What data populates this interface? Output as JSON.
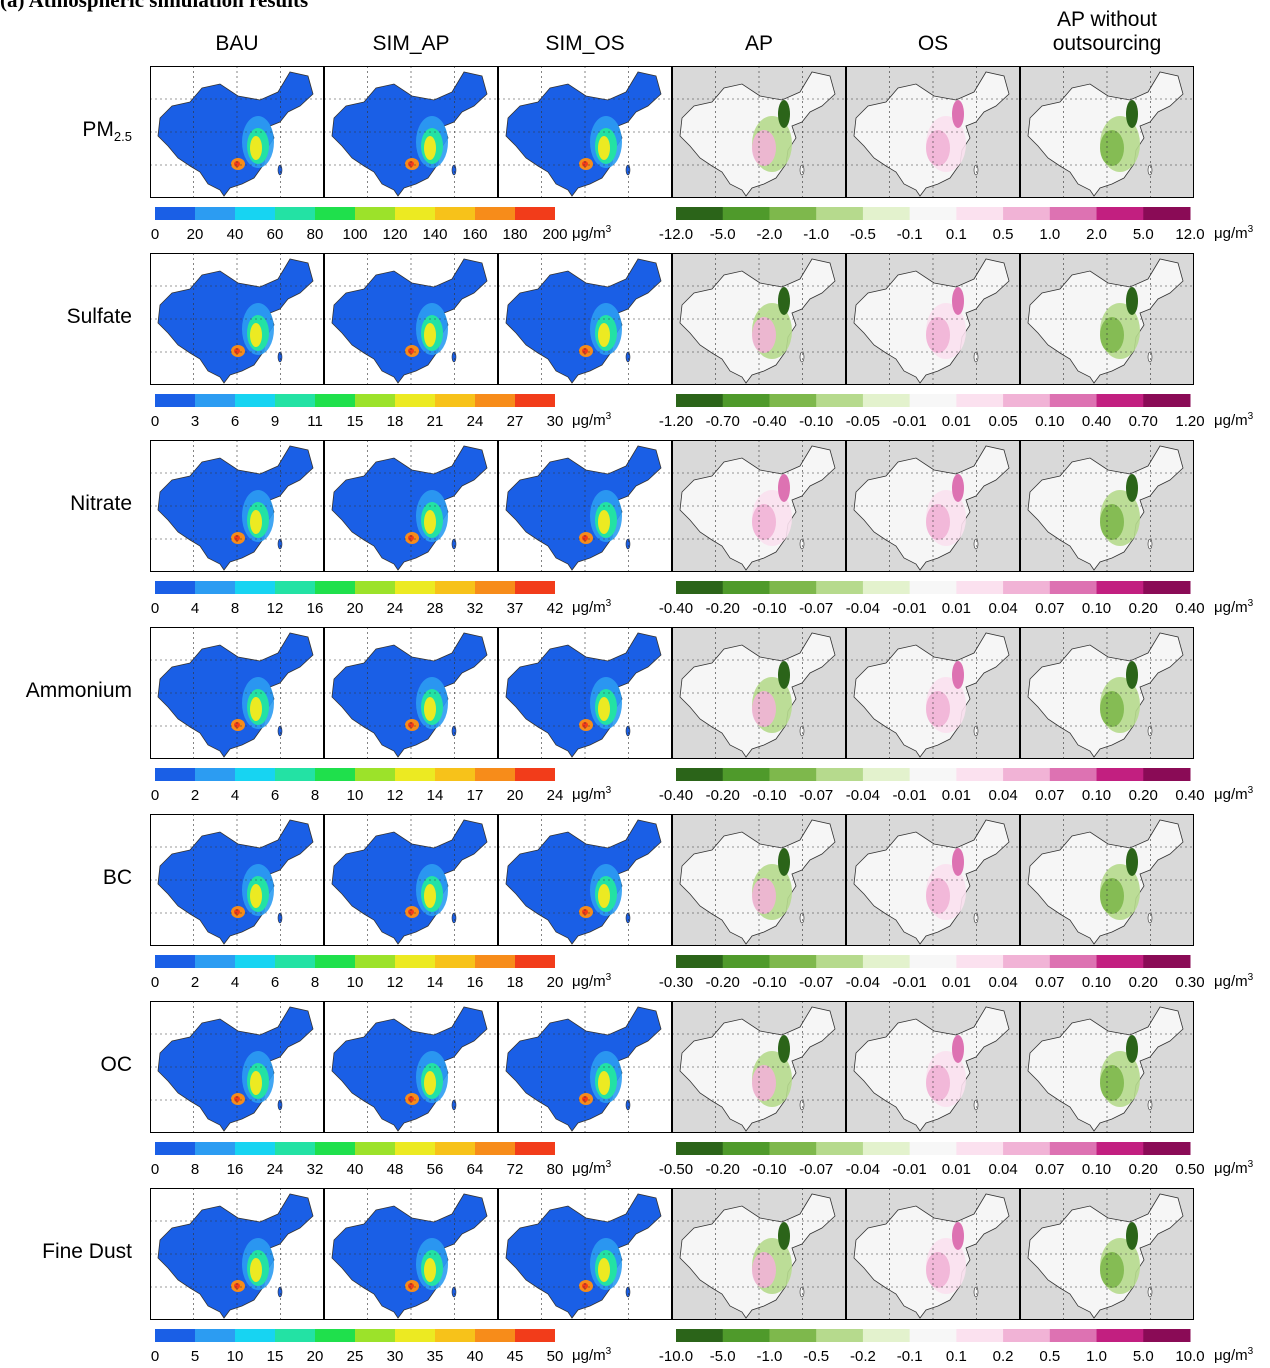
{
  "title": "(a) Atmospheric simulation results",
  "headers": [
    "BAU",
    "SIM_AP",
    "SIM_OS",
    "AP",
    "OS",
    "AP without outsourcing"
  ],
  "unit": {
    "base": "μg/m",
    "sup": "3"
  },
  "rows": [
    {
      "label": "PM",
      "label_sub": "2.5",
      "abs_ticks": [
        "0",
        "20",
        "40",
        "60",
        "80",
        "100",
        "120",
        "140",
        "160",
        "180",
        "200"
      ],
      "diff_ticks": [
        "-12.0",
        "-5.0",
        "-2.0",
        "-1.0",
        "-0.5",
        "-0.1",
        "0.1",
        "0.5",
        "1.0",
        "2.0",
        "5.0",
        "12.0"
      ]
    },
    {
      "label": "Sulfate",
      "abs_ticks": [
        "0",
        "3",
        "6",
        "9",
        "11",
        "15",
        "18",
        "21",
        "24",
        "27",
        "30"
      ],
      "diff_ticks": [
        "-1.20",
        "-0.70",
        "-0.40",
        "-0.10",
        "-0.05",
        "-0.01",
        "0.01",
        "0.05",
        "0.10",
        "0.40",
        "0.70",
        "1.20"
      ]
    },
    {
      "label": "Nitrate",
      "abs_ticks": [
        "0",
        "4",
        "8",
        "12",
        "16",
        "20",
        "24",
        "28",
        "32",
        "37",
        "42"
      ],
      "diff_ticks": [
        "-0.40",
        "-0.20",
        "-0.10",
        "-0.07",
        "-0.04",
        "-0.01",
        "0.01",
        "0.04",
        "0.07",
        "0.10",
        "0.20",
        "0.40"
      ]
    },
    {
      "label": "Ammonium",
      "abs_ticks": [
        "0",
        "2",
        "4",
        "6",
        "8",
        "10",
        "12",
        "14",
        "17",
        "20",
        "24"
      ],
      "diff_ticks": [
        "-0.40",
        "-0.20",
        "-0.10",
        "-0.07",
        "-0.04",
        "-0.01",
        "0.01",
        "0.04",
        "0.07",
        "0.10",
        "0.20",
        "0.40"
      ]
    },
    {
      "label": "BC",
      "abs_ticks": [
        "0",
        "2",
        "4",
        "6",
        "8",
        "10",
        "12",
        "14",
        "16",
        "18",
        "20"
      ],
      "diff_ticks": [
        "-0.30",
        "-0.20",
        "-0.10",
        "-0.07",
        "-0.04",
        "-0.01",
        "0.01",
        "0.04",
        "0.07",
        "0.10",
        "0.20",
        "0.30"
      ]
    },
    {
      "label": "OC",
      "abs_ticks": [
        "0",
        "8",
        "16",
        "24",
        "32",
        "40",
        "48",
        "56",
        "64",
        "72",
        "80"
      ],
      "diff_ticks": [
        "-0.50",
        "-0.20",
        "-0.10",
        "-0.07",
        "-0.04",
        "-0.01",
        "0.01",
        "0.04",
        "0.07",
        "0.10",
        "0.20",
        "0.50"
      ]
    },
    {
      "label": "Fine Dust",
      "abs_ticks": [
        "0",
        "5",
        "10",
        "15",
        "20",
        "25",
        "30",
        "35",
        "40",
        "45",
        "50"
      ],
      "diff_ticks": [
        "-10.0",
        "-5.0",
        "-1.0",
        "-0.5",
        "-0.2",
        "-0.1",
        "0.1",
        "0.2",
        "0.5",
        "1.0",
        "5.0",
        "10.0"
      ]
    }
  ]
}
